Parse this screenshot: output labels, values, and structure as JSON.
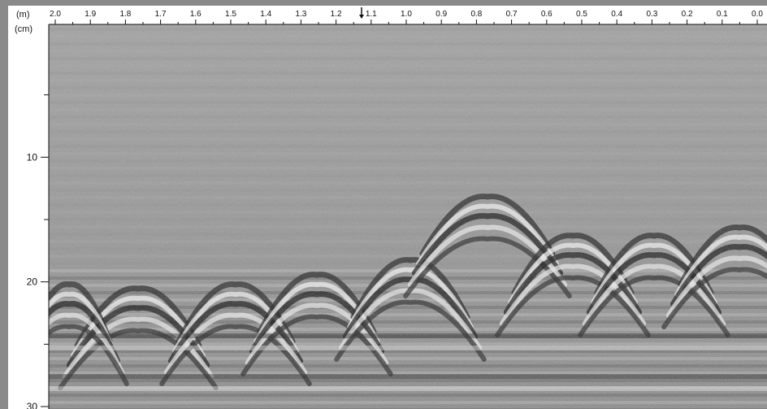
{
  "scan": {
    "distance_unit": "(m)",
    "depth_unit": "(cm)",
    "distance_labels": [
      "2.0",
      "1.9",
      "1.8",
      "1.7",
      "1.6",
      "1.5",
      "1.4",
      "1.3",
      "1.2",
      "1.1",
      "1.0",
      "0.9",
      "0.8",
      "0.7",
      "0.6",
      "0.5",
      "0.4",
      "0.3",
      "0.2",
      "0.1",
      "0.0"
    ],
    "depth_labels": [
      "10",
      "20",
      "30"
    ],
    "depth_values": [
      10,
      20,
      30
    ],
    "depth_range": [
      0,
      30
    ],
    "distance_range": [
      2.0,
      0.0
    ],
    "colors": {
      "frame": "#8a8a8a",
      "axis_background": "#ffffff",
      "radargram_base": "#9b9b9b",
      "ink": "#111111"
    }
  }
}
